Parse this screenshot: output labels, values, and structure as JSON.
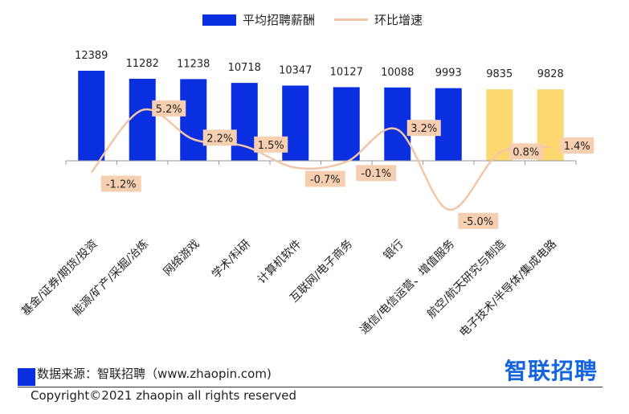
{
  "legend": {
    "bar_label": "平均招聘薪酬",
    "line_label": "环比增速"
  },
  "source": "数据来源：智联招聘（www.zhaopin.com)",
  "logo": "智联招聘",
  "copyright": "Copyright©2021 zhaopin all rights reserved",
  "colors": {
    "bar": "#0a2fe0",
    "bar_highlight": "#fcd86e",
    "line": "#f2c6a6",
    "label_box": "#f6cfb0"
  },
  "chart_data": {
    "type": "bar",
    "categories": [
      "基金/证券/期货/投资",
      "能源/矿产/采掘/冶炼",
      "网络游戏",
      "学术/科研",
      "计算机软件",
      "互联网/电子商务",
      "银行",
      "通信/电信运营、增值服务",
      "航空/航天研究与制造",
      "电子技术/半导体/集成电路"
    ],
    "series": [
      {
        "name": "平均招聘薪酬",
        "type": "bar",
        "values": [
          12389,
          11282,
          11238,
          10718,
          10347,
          10127,
          10088,
          9993,
          9835,
          9828
        ],
        "highlight": [
          false,
          false,
          false,
          false,
          false,
          false,
          false,
          false,
          true,
          true
        ]
      },
      {
        "name": "环比增速",
        "type": "line",
        "values": [
          -1.2,
          5.2,
          2.2,
          1.5,
          -0.7,
          -0.1,
          3.2,
          -5.0,
          0.8,
          1.4
        ],
        "labels": [
          "-1.2%",
          "5.2%",
          "2.2%",
          "1.5%",
          "-0.7%",
          "-0.1%",
          "3.2%",
          "-5.0%",
          "0.8%",
          "1.4%"
        ]
      }
    ],
    "bar_value_labels": [
      "12389",
      "11282",
      "11238",
      "10718",
      "10347",
      "10127",
      "10088",
      "9993",
      "9835",
      "9828"
    ],
    "ylim_bar": [
      0,
      14000
    ],
    "ylim_line": [
      -10,
      10
    ],
    "grid": false,
    "legend_position": "top"
  }
}
